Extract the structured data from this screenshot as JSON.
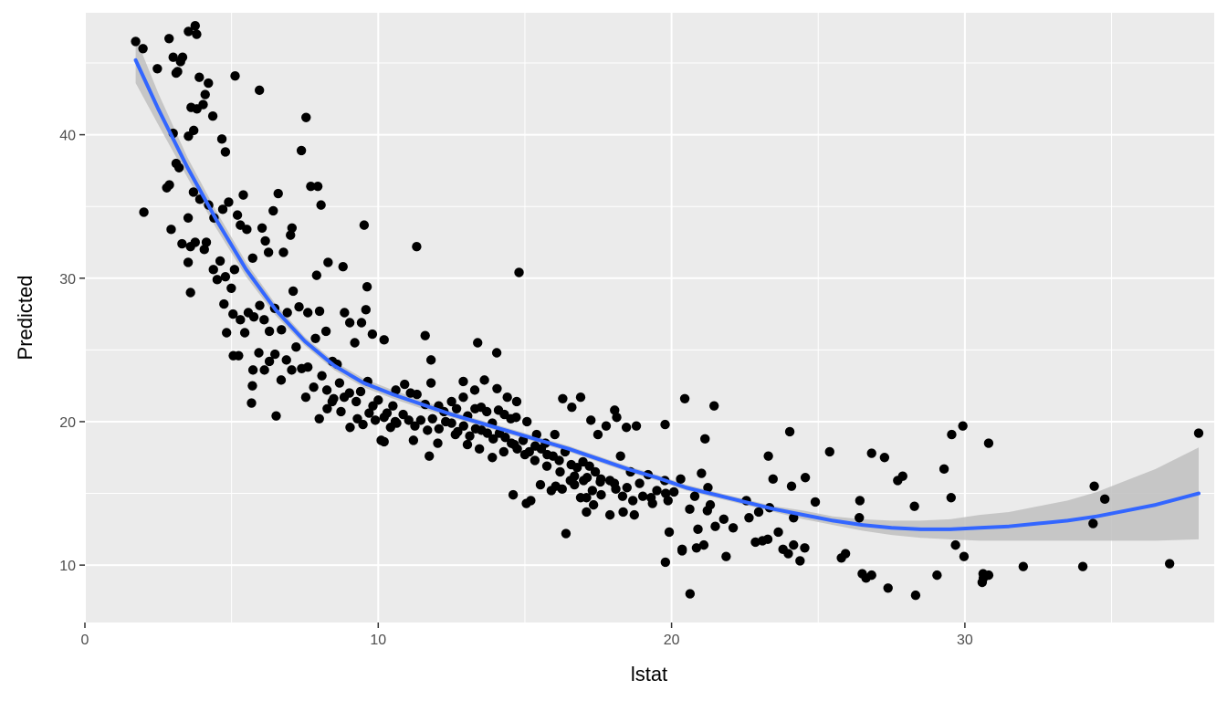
{
  "chart_data": {
    "type": "scatter",
    "title": "",
    "xlabel": "lstat",
    "ylabel": "Predicted",
    "xlim": [
      0,
      38.5
    ],
    "ylim": [
      6.0,
      48.5
    ],
    "x_ticks": [
      0,
      10,
      20,
      30
    ],
    "y_ticks": [
      10,
      20,
      30,
      40
    ],
    "x_tick_labels": [
      "0",
      "10",
      "20",
      "30"
    ],
    "y_tick_labels": [
      "10",
      "20",
      "30",
      "40"
    ],
    "grid": true,
    "legend": "none",
    "colors": {
      "panel_background": "#ebebeb",
      "grid": "#ffffff",
      "points": "#000000",
      "smooth_line": "#3366ff",
      "confidence_band": "#bfbfbf"
    },
    "points": [
      [
        1.73,
        46.5
      ],
      [
        1.98,
        46.0
      ],
      [
        2.47,
        44.6
      ],
      [
        2.87,
        46.7
      ],
      [
        3.01,
        45.4
      ],
      [
        3.11,
        44.3
      ],
      [
        3.33,
        45.4
      ],
      [
        3.53,
        47.2
      ],
      [
        3.76,
        47.6
      ],
      [
        3.81,
        47.0
      ],
      [
        3.16,
        44.4
      ],
      [
        3.26,
        45.1
      ],
      [
        3.9,
        44.0
      ],
      [
        4.1,
        42.8
      ],
      [
        4.21,
        43.6
      ],
      [
        4.03,
        42.1
      ],
      [
        4.36,
        41.3
      ],
      [
        3.82,
        41.8
      ],
      [
        3.62,
        41.9
      ],
      [
        3.71,
        40.3
      ],
      [
        5.12,
        44.1
      ],
      [
        5.95,
        43.1
      ],
      [
        4.67,
        39.7
      ],
      [
        3.53,
        39.9
      ],
      [
        4.79,
        38.8
      ],
      [
        2.01,
        34.6
      ],
      [
        2.79,
        36.3
      ],
      [
        2.88,
        36.5
      ],
      [
        3.11,
        38.0
      ],
      [
        3.01,
        40.1
      ],
      [
        3.21,
        37.7
      ],
      [
        3.52,
        34.2
      ],
      [
        3.7,
        36.0
      ],
      [
        3.92,
        35.5
      ],
      [
        4.22,
        35.1
      ],
      [
        4.4,
        34.2
      ],
      [
        4.7,
        34.8
      ],
      [
        4.9,
        35.3
      ],
      [
        5.2,
        34.4
      ],
      [
        5.4,
        35.8
      ],
      [
        2.94,
        33.4
      ],
      [
        3.31,
        32.4
      ],
      [
        3.6,
        32.2
      ],
      [
        3.76,
        32.5
      ],
      [
        3.52,
        31.1
      ],
      [
        3.6,
        29.0
      ],
      [
        4.07,
        32.0
      ],
      [
        4.14,
        32.5
      ],
      [
        4.38,
        30.6
      ],
      [
        4.51,
        29.9
      ],
      [
        4.61,
        31.2
      ],
      [
        4.79,
        30.1
      ],
      [
        4.99,
        29.3
      ],
      [
        5.1,
        30.6
      ],
      [
        5.3,
        33.7
      ],
      [
        5.52,
        33.4
      ],
      [
        5.72,
        31.4
      ],
      [
        6.04,
        33.5
      ],
      [
        6.15,
        32.6
      ],
      [
        6.26,
        31.8
      ],
      [
        6.42,
        34.7
      ],
      [
        6.59,
        35.9
      ],
      [
        6.77,
        31.8
      ],
      [
        7.01,
        33.0
      ],
      [
        7.06,
        33.5
      ],
      [
        7.38,
        38.9
      ],
      [
        7.54,
        41.2
      ],
      [
        7.7,
        36.4
      ],
      [
        7.94,
        36.4
      ],
      [
        8.05,
        35.1
      ],
      [
        7.9,
        30.2
      ],
      [
        8.29,
        31.1
      ],
      [
        8.8,
        30.8
      ],
      [
        9.52,
        33.7
      ],
      [
        9.62,
        29.4
      ],
      [
        4.74,
        28.2
      ],
      [
        4.83,
        26.2
      ],
      [
        5.05,
        27.5
      ],
      [
        5.3,
        27.1
      ],
      [
        5.57,
        27.6
      ],
      [
        5.76,
        27.3
      ],
      [
        5.96,
        28.1
      ],
      [
        6.11,
        27.1
      ],
      [
        6.29,
        26.3
      ],
      [
        6.47,
        27.9
      ],
      [
        6.7,
        26.4
      ],
      [
        6.9,
        27.6
      ],
      [
        7.1,
        29.1
      ],
      [
        7.3,
        28.0
      ],
      [
        7.6,
        27.6
      ],
      [
        7.86,
        25.8
      ],
      [
        8.0,
        27.7
      ],
      [
        8.22,
        26.3
      ],
      [
        8.44,
        24.2
      ],
      [
        8.6,
        24.0
      ],
      [
        8.85,
        27.6
      ],
      [
        9.03,
        26.9
      ],
      [
        9.2,
        25.5
      ],
      [
        9.43,
        26.9
      ],
      [
        9.58,
        27.8
      ],
      [
        9.8,
        26.1
      ],
      [
        10.2,
        25.7
      ],
      [
        5.06,
        24.6
      ],
      [
        5.24,
        24.6
      ],
      [
        5.45,
        26.2
      ],
      [
        5.73,
        23.6
      ],
      [
        5.93,
        24.8
      ],
      [
        6.12,
        23.6
      ],
      [
        6.29,
        24.2
      ],
      [
        6.48,
        24.7
      ],
      [
        6.69,
        22.9
      ],
      [
        6.87,
        24.3
      ],
      [
        7.05,
        23.6
      ],
      [
        7.2,
        25.2
      ],
      [
        7.39,
        23.7
      ],
      [
        7.6,
        23.8
      ],
      [
        7.8,
        22.4
      ],
      [
        8.08,
        23.2
      ],
      [
        8.25,
        22.2
      ],
      [
        8.43,
        21.4
      ],
      [
        8.68,
        22.7
      ],
      [
        8.84,
        21.7
      ],
      [
        9.02,
        22.0
      ],
      [
        9.25,
        21.4
      ],
      [
        9.4,
        22.1
      ],
      [
        9.64,
        22.8
      ],
      [
        9.82,
        21.1
      ],
      [
        10.0,
        21.5
      ],
      [
        5.71,
        22.5
      ],
      [
        5.68,
        21.3
      ],
      [
        6.52,
        20.4
      ],
      [
        7.53,
        21.7
      ],
      [
        7.99,
        20.2
      ],
      [
        8.26,
        20.9
      ],
      [
        8.48,
        21.6
      ],
      [
        8.73,
        20.7
      ],
      [
        9.04,
        19.6
      ],
      [
        9.29,
        20.2
      ],
      [
        9.48,
        19.8
      ],
      [
        9.69,
        20.6
      ],
      [
        9.9,
        20.1
      ],
      [
        10.1,
        18.7
      ],
      [
        10.3,
        20.6
      ],
      [
        10.5,
        21.1
      ],
      [
        10.6,
        22.2
      ],
      [
        10.9,
        22.6
      ],
      [
        11.1,
        22.0
      ],
      [
        11.32,
        21.9
      ],
      [
        11.6,
        21.2
      ],
      [
        11.8,
        22.7
      ],
      [
        12.06,
        21.1
      ],
      [
        12.24,
        20.7
      ],
      [
        12.5,
        21.4
      ],
      [
        12.67,
        20.9
      ],
      [
        12.9,
        21.7
      ],
      [
        13.05,
        20.4
      ],
      [
        13.3,
        20.9
      ],
      [
        13.51,
        21.0
      ],
      [
        13.7,
        20.7
      ],
      [
        13.89,
        19.9
      ],
      [
        14.1,
        20.8
      ],
      [
        14.3,
        20.5
      ],
      [
        14.52,
        20.2
      ],
      [
        14.7,
        20.3
      ],
      [
        10.2,
        20.3
      ],
      [
        10.42,
        19.6
      ],
      [
        10.63,
        19.9
      ],
      [
        10.85,
        20.5
      ],
      [
        11.04,
        20.1
      ],
      [
        11.25,
        19.7
      ],
      [
        11.45,
        20.1
      ],
      [
        11.68,
        19.4
      ],
      [
        11.85,
        20.2
      ],
      [
        12.07,
        19.5
      ],
      [
        12.3,
        20.0
      ],
      [
        12.5,
        19.9
      ],
      [
        12.71,
        19.3
      ],
      [
        12.91,
        19.7
      ],
      [
        13.12,
        19.0
      ],
      [
        13.32,
        19.5
      ],
      [
        13.52,
        19.4
      ],
      [
        13.72,
        19.2
      ],
      [
        13.92,
        18.8
      ],
      [
        14.13,
        19.2
      ],
      [
        14.33,
        18.9
      ],
      [
        14.54,
        18.5
      ],
      [
        14.74,
        18.1
      ],
      [
        14.94,
        18.7
      ],
      [
        15.15,
        17.9
      ],
      [
        15.35,
        18.3
      ],
      [
        15.56,
        18.1
      ],
      [
        15.76,
        17.7
      ],
      [
        15.96,
        17.6
      ],
      [
        16.17,
        17.3
      ],
      [
        16.37,
        17.9
      ],
      [
        16.58,
        17.0
      ],
      [
        16.78,
        16.8
      ],
      [
        16.98,
        17.2
      ],
      [
        17.2,
        16.9
      ],
      [
        17.4,
        16.5
      ],
      [
        11.31,
        32.2
      ],
      [
        11.6,
        26.0
      ],
      [
        11.8,
        24.3
      ],
      [
        13.39,
        25.5
      ],
      [
        14.04,
        24.8
      ],
      [
        14.8,
        30.4
      ],
      [
        12.9,
        22.8
      ],
      [
        13.29,
        22.2
      ],
      [
        13.62,
        22.9
      ],
      [
        14.05,
        22.3
      ],
      [
        14.4,
        21.7
      ],
      [
        14.72,
        21.4
      ],
      [
        15.07,
        20.0
      ],
      [
        15.4,
        19.1
      ],
      [
        15.7,
        18.5
      ],
      [
        16.02,
        19.1
      ],
      [
        16.29,
        21.6
      ],
      [
        16.6,
        21.0
      ],
      [
        16.9,
        21.7
      ],
      [
        17.25,
        20.1
      ],
      [
        17.49,
        19.1
      ],
      [
        17.77,
        19.7
      ],
      [
        18.06,
        20.8
      ],
      [
        18.13,
        20.3
      ],
      [
        18.46,
        19.6
      ],
      [
        18.8,
        19.7
      ],
      [
        19.78,
        19.8
      ],
      [
        18.26,
        17.6
      ],
      [
        18.6,
        16.5
      ],
      [
        18.91,
        15.7
      ],
      [
        19.2,
        16.3
      ],
      [
        19.5,
        15.2
      ],
      [
        19.8,
        15.0
      ],
      [
        17.59,
        16.0
      ],
      [
        17.9,
        15.9
      ],
      [
        18.1,
        15.3
      ],
      [
        18.33,
        14.8
      ],
      [
        18.68,
        14.5
      ],
      [
        19.02,
        14.8
      ],
      [
        19.35,
        14.3
      ],
      [
        17.1,
        14.7
      ],
      [
        17.34,
        14.2
      ],
      [
        17.1,
        13.7
      ],
      [
        17.9,
        13.5
      ],
      [
        18.35,
        13.7
      ],
      [
        18.73,
        13.5
      ],
      [
        14.6,
        14.9
      ],
      [
        15.05,
        14.3
      ],
      [
        15.2,
        14.5
      ],
      [
        16.05,
        15.5
      ],
      [
        16.4,
        12.2
      ],
      [
        16.69,
        15.6
      ],
      [
        16.9,
        14.7
      ],
      [
        15.53,
        15.6
      ],
      [
        15.9,
        15.2
      ],
      [
        16.27,
        15.3
      ],
      [
        16.55,
        15.9
      ],
      [
        17.0,
        15.9
      ],
      [
        17.3,
        15.2
      ],
      [
        17.6,
        14.9
      ],
      [
        19.92,
        12.3
      ],
      [
        19.79,
        10.2
      ],
      [
        20.36,
        11.1
      ],
      [
        20.36,
        11.0
      ],
      [
        20.63,
        8.0
      ],
      [
        20.85,
        11.2
      ],
      [
        21.1,
        11.4
      ],
      [
        21.49,
        12.7
      ],
      [
        21.86,
        10.6
      ],
      [
        22.1,
        12.6
      ],
      [
        22.55,
        14.5
      ],
      [
        22.97,
        13.7
      ],
      [
        22.64,
        13.3
      ],
      [
        22.86,
        11.6
      ],
      [
        23.1,
        11.7
      ],
      [
        23.28,
        11.8
      ],
      [
        23.34,
        14.0
      ],
      [
        23.64,
        12.3
      ],
      [
        23.8,
        11.1
      ],
      [
        23.98,
        10.8
      ],
      [
        24.16,
        11.4
      ],
      [
        24.38,
        10.3
      ],
      [
        24.54,
        11.2
      ],
      [
        24.16,
        13.3
      ],
      [
        24.56,
        16.1
      ],
      [
        24.03,
        19.3
      ],
      [
        23.3,
        17.6
      ],
      [
        23.46,
        16.0
      ],
      [
        24.09,
        15.5
      ],
      [
        24.9,
        14.4
      ],
      [
        25.39,
        17.9
      ],
      [
        25.79,
        10.5
      ],
      [
        25.93,
        10.8
      ],
      [
        26.42,
        14.5
      ],
      [
        26.4,
        13.3
      ],
      [
        26.5,
        9.4
      ],
      [
        26.63,
        9.1
      ],
      [
        26.82,
        9.3
      ],
      [
        26.82,
        17.8
      ],
      [
        27.26,
        17.5
      ],
      [
        27.38,
        8.4
      ],
      [
        27.71,
        15.9
      ],
      [
        27.88,
        16.2
      ],
      [
        28.28,
        14.1
      ],
      [
        28.32,
        7.9
      ],
      [
        29.05,
        9.3
      ],
      [
        29.29,
        16.7
      ],
      [
        29.53,
        14.7
      ],
      [
        29.55,
        19.1
      ],
      [
        29.68,
        11.4
      ],
      [
        29.93,
        19.7
      ],
      [
        29.97,
        10.6
      ],
      [
        30.59,
        8.8
      ],
      [
        30.63,
        9.1
      ],
      [
        30.62,
        9.4
      ],
      [
        30.81,
        9.3
      ],
      [
        30.81,
        18.5
      ],
      [
        31.99,
        9.9
      ],
      [
        34.02,
        9.9
      ],
      [
        34.37,
        12.9
      ],
      [
        34.41,
        15.5
      ],
      [
        34.77,
        14.6
      ],
      [
        36.98,
        10.1
      ],
      [
        37.97,
        19.2
      ],
      [
        20.45,
        21.6
      ],
      [
        21.45,
        21.1
      ],
      [
        21.14,
        18.8
      ],
      [
        20.08,
        15.1
      ],
      [
        20.79,
        14.8
      ],
      [
        21.24,
        15.4
      ],
      [
        21.02,
        16.4
      ],
      [
        20.31,
        16.0
      ],
      [
        19.77,
        15.9
      ],
      [
        19.3,
        14.7
      ],
      [
        19.88,
        14.5
      ],
      [
        20.62,
        13.9
      ],
      [
        21.32,
        14.2
      ],
      [
        21.78,
        13.2
      ],
      [
        21.22,
        13.8
      ],
      [
        20.9,
        12.5
      ],
      [
        10.2,
        18.6
      ],
      [
        10.58,
        20.0
      ],
      [
        11.2,
        18.7
      ],
      [
        11.74,
        17.6
      ],
      [
        12.03,
        18.5
      ],
      [
        12.63,
        19.1
      ],
      [
        13.04,
        18.4
      ],
      [
        13.45,
        18.1
      ],
      [
        13.89,
        17.5
      ],
      [
        14.28,
        17.9
      ],
      [
        14.64,
        18.4
      ],
      [
        15.0,
        17.7
      ],
      [
        15.34,
        17.3
      ],
      [
        15.75,
        16.9
      ],
      [
        16.2,
        16.5
      ],
      [
        16.69,
        16.2
      ],
      [
        17.12,
        16.1
      ],
      [
        17.57,
        15.8
      ],
      [
        18.05,
        15.7
      ],
      [
        18.48,
        15.4
      ]
    ],
    "smooth_line": {
      "x": [
        1.73,
        2.5,
        3.5,
        4.5,
        5.5,
        6.5,
        7.5,
        8.5,
        9.5,
        10.5,
        11.5,
        12.5,
        13.5,
        14.5,
        15.5,
        16.5,
        17.5,
        18.5,
        19.5,
        20.5,
        21.5,
        22.5,
        23.5,
        24.5,
        25.5,
        26.5,
        27.5,
        28.5,
        29.5,
        30.5,
        31.5,
        32.5,
        33.5,
        34.5,
        35.5,
        36.5,
        37.97
      ],
      "y": [
        45.2,
        41.8,
        37.7,
        34.0,
        30.6,
        27.8,
        25.6,
        23.9,
        22.7,
        21.9,
        21.2,
        20.5,
        19.9,
        19.3,
        18.7,
        18.1,
        17.4,
        16.7,
        16.1,
        15.4,
        14.9,
        14.4,
        13.9,
        13.5,
        13.1,
        12.8,
        12.6,
        12.5,
        12.5,
        12.6,
        12.7,
        12.9,
        13.1,
        13.4,
        13.8,
        14.2,
        15.0
      ],
      "lower": [
        43.6,
        40.7,
        37.0,
        33.4,
        30.1,
        27.4,
        25.3,
        23.6,
        22.4,
        21.6,
        20.9,
        20.3,
        19.7,
        19.1,
        18.5,
        17.9,
        17.2,
        16.5,
        15.9,
        15.2,
        14.7,
        14.2,
        13.7,
        13.2,
        12.8,
        12.4,
        12.1,
        11.9,
        11.8,
        11.7,
        11.7,
        11.7,
        11.7,
        11.7,
        11.7,
        11.7,
        11.8
      ],
      "upper": [
        46.8,
        42.9,
        38.4,
        34.6,
        31.1,
        28.2,
        25.9,
        24.2,
        23.0,
        22.2,
        21.5,
        20.7,
        20.1,
        19.5,
        18.9,
        18.3,
        17.6,
        16.9,
        16.3,
        15.6,
        15.1,
        14.6,
        14.1,
        13.8,
        13.4,
        13.2,
        13.1,
        13.1,
        13.2,
        13.5,
        13.7,
        14.1,
        14.5,
        15.1,
        15.9,
        16.7,
        18.2
      ]
    }
  }
}
